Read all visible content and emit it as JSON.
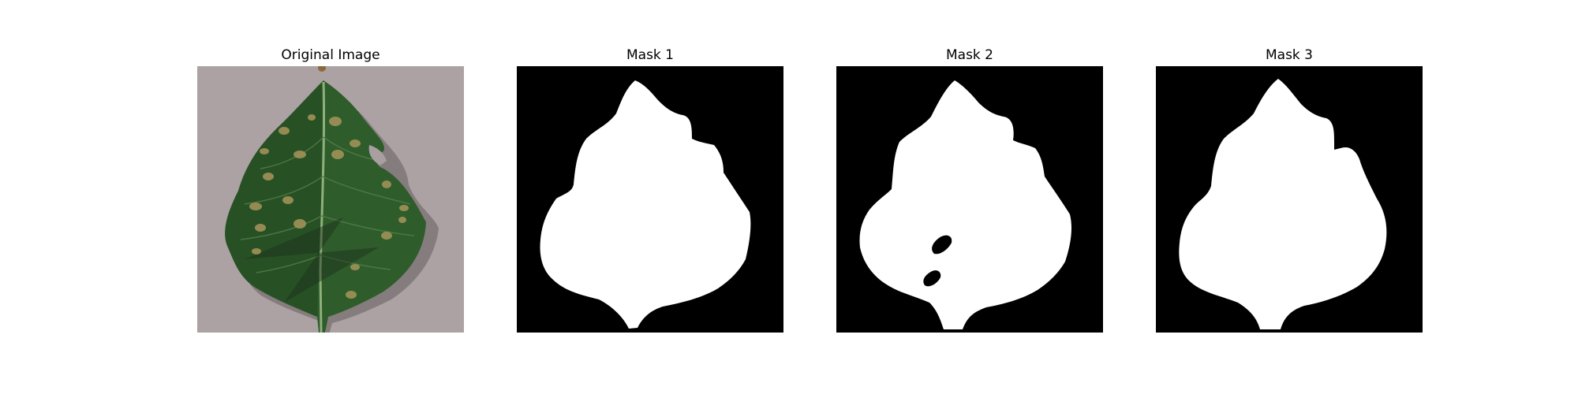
{
  "figure": {
    "panels": [
      {
        "title": "Original Image",
        "kind": "photo",
        "subject": "leaf-photo"
      },
      {
        "title": "Mask 1",
        "kind": "mask"
      },
      {
        "title": "Mask 2",
        "kind": "mask"
      },
      {
        "title": "Mask 3",
        "kind": "mask"
      }
    ],
    "colors": {
      "background": "#ffffff",
      "mask_background": "#000000",
      "mask_foreground": "#ffffff",
      "photo_background": "#a89e9f",
      "leaf_green": "#2f5e2c",
      "leaf_dark": "#1f4420",
      "spot": "#9a8a4e"
    }
  }
}
